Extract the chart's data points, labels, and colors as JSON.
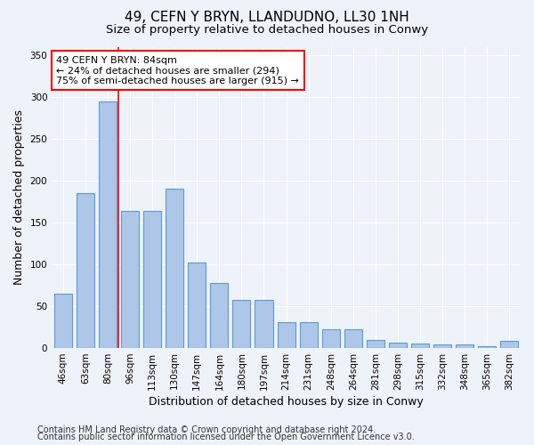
{
  "title1": "49, CEFN Y BRYN, LLANDUDNO, LL30 1NH",
  "title2": "Size of property relative to detached houses in Conwy",
  "xlabel": "Distribution of detached houses by size in Conwy",
  "ylabel": "Number of detached properties",
  "categories": [
    "46sqm",
    "63sqm",
    "80sqm",
    "96sqm",
    "113sqm",
    "130sqm",
    "147sqm",
    "164sqm",
    "180sqm",
    "197sqm",
    "214sqm",
    "231sqm",
    "248sqm",
    "264sqm",
    "281sqm",
    "298sqm",
    "315sqm",
    "332sqm",
    "348sqm",
    "365sqm",
    "382sqm"
  ],
  "values": [
    65,
    185,
    295,
    163,
    163,
    190,
    102,
    77,
    57,
    57,
    30,
    30,
    22,
    22,
    9,
    6,
    5,
    4,
    4,
    2,
    8
  ],
  "bar_color": "#aec6e8",
  "bar_edge_color": "#5b9bd5",
  "bar_width": 0.8,
  "red_line_x": 2.5,
  "annotation_line1": "49 CEFN Y BRYN: 84sqm",
  "annotation_line2": "← 24% of detached houses are smaller (294)",
  "annotation_line3": "75% of semi-detached houses are larger (915) →",
  "annotation_box_color": "white",
  "annotation_box_edge_color": "red",
  "footer_line1": "Contains HM Land Registry data © Crown copyright and database right 2024.",
  "footer_line2": "Contains public sector information licensed under the Open Government Licence v3.0.",
  "ylim": [
    0,
    360
  ],
  "yticks": [
    0,
    50,
    100,
    150,
    200,
    250,
    300,
    350
  ],
  "background_color": "#eef2f9",
  "grid_color": "white",
  "title1_fontsize": 11,
  "title2_fontsize": 9.5,
  "axis_label_fontsize": 9,
  "tick_fontsize": 7.5,
  "annotation_fontsize": 8,
  "footer_fontsize": 7
}
